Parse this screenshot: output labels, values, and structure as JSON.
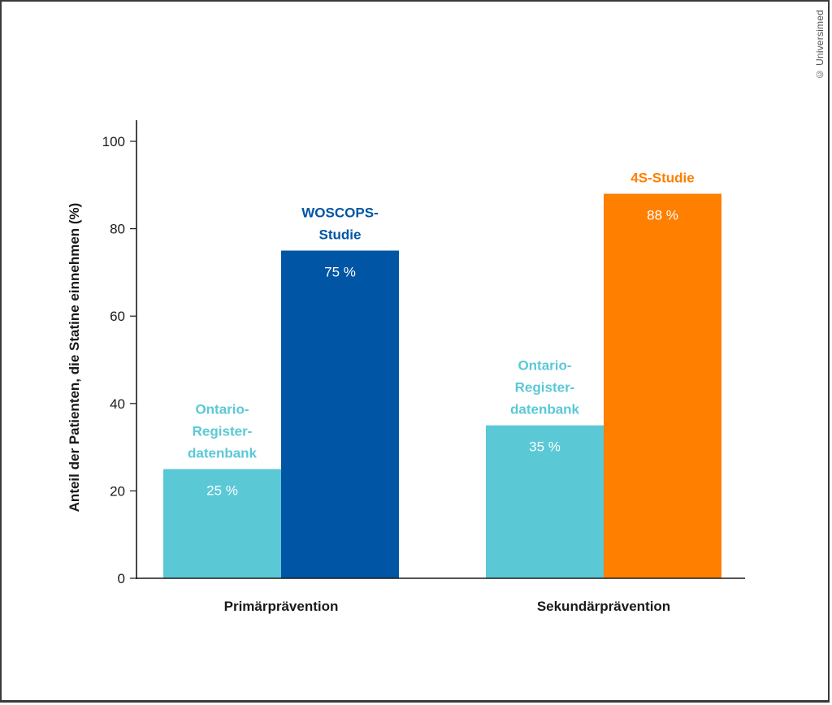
{
  "copyright": "© Universimed",
  "chart_data": {
    "type": "bar",
    "title": "",
    "xlabel": "",
    "ylabel": "Anteil der Patienten, die Statine einnehmen (%)",
    "ylim": [
      0,
      100
    ],
    "yticks": [
      0,
      20,
      40,
      60,
      80,
      100
    ],
    "grid": false,
    "legend": "none (bars labelled directly)",
    "categories": [
      "Primärprävention",
      "Sekundärprävention"
    ],
    "bars": [
      {
        "category": "Primärprävention",
        "name_lines": [
          "Ontario-",
          "Register-",
          "datenbank"
        ],
        "value": 25,
        "value_label": "25 %",
        "color": "#5bc8d6",
        "name_color": "#5bc8d6"
      },
      {
        "category": "Primärprävention",
        "name_lines": [
          "WOSCOPS-",
          "Studie"
        ],
        "value": 75,
        "value_label": "75 %",
        "color": "#0055a5",
        "name_color": "#0055a5"
      },
      {
        "category": "Sekundärprävention",
        "name_lines": [
          "Ontario-",
          "Register-",
          "datenbank"
        ],
        "value": 35,
        "value_label": "35 %",
        "color": "#5bc8d6",
        "name_color": "#5bc8d6"
      },
      {
        "category": "Sekundärprävention",
        "name_lines": [
          "4S-Studie"
        ],
        "value": 88,
        "value_label": "88 %",
        "color": "#ff7f00",
        "name_color": "#ff7f00"
      }
    ]
  }
}
